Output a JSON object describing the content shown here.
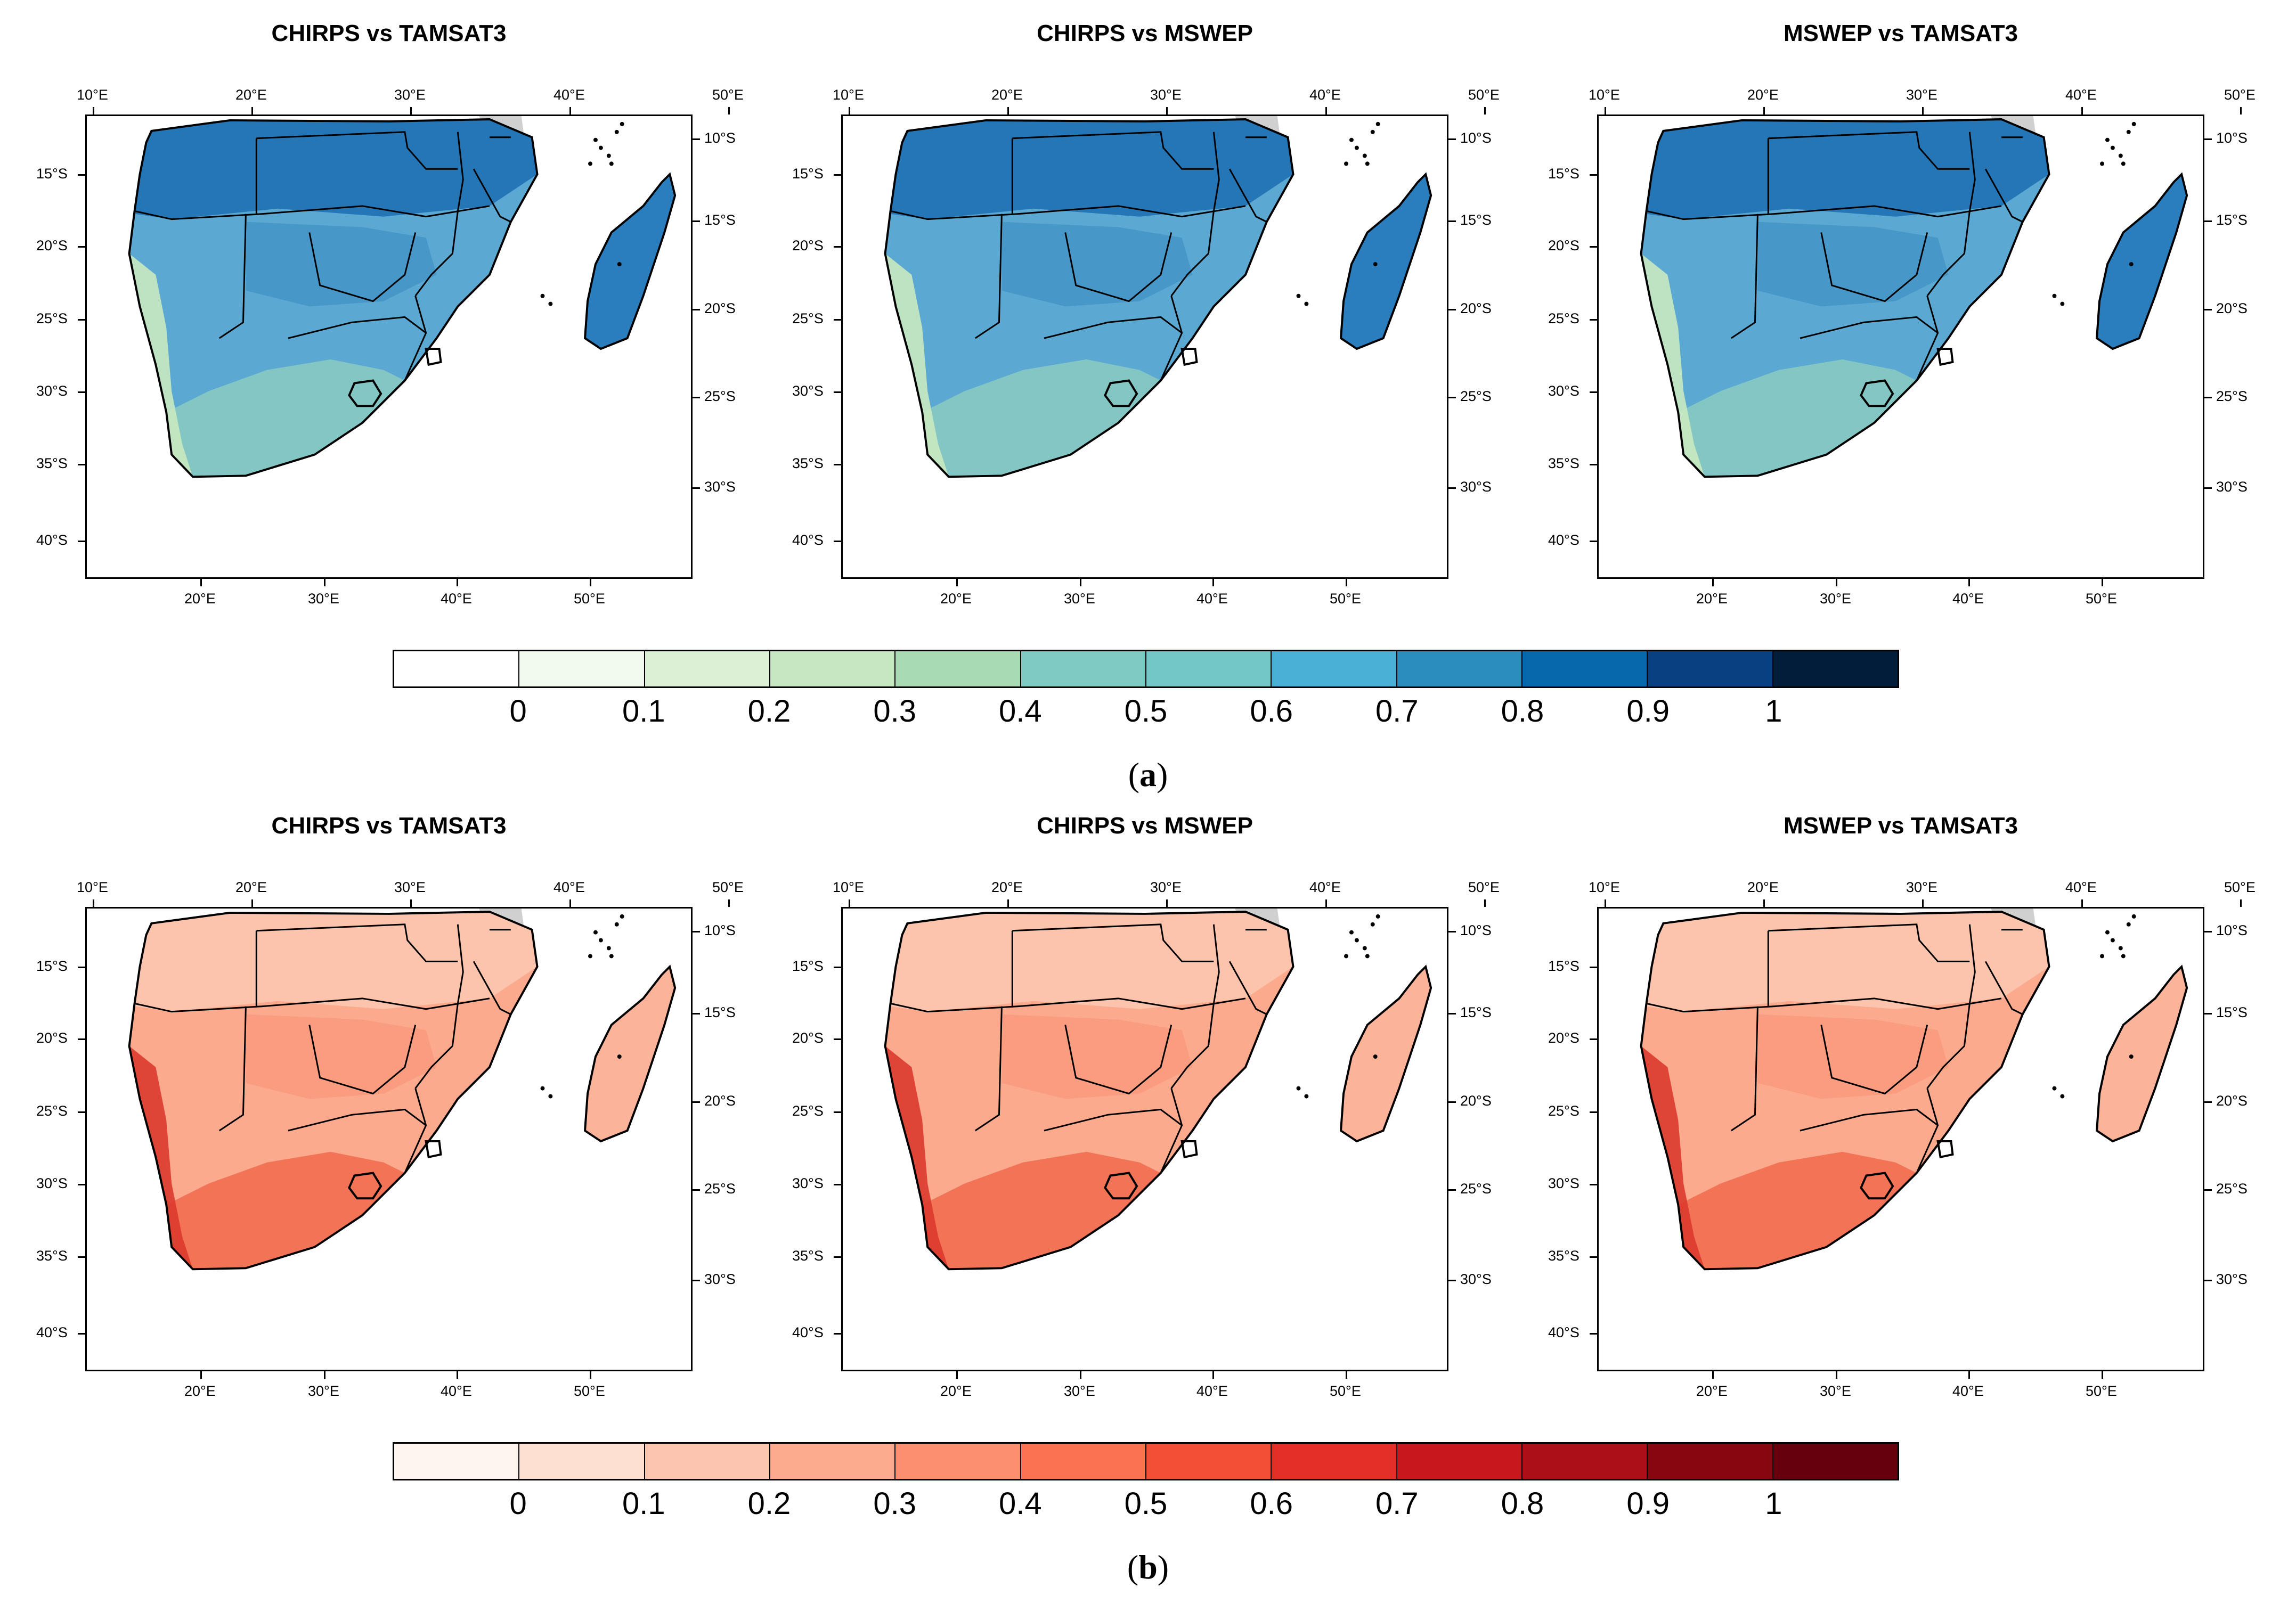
{
  "panels": [
    {
      "label_open": "(",
      "label_letter": "a",
      "label_close": ")",
      "maps": [
        {
          "title": "CHIRPS vs TAMSAT3"
        },
        {
          "title": "CHIRPS vs MSWEP"
        },
        {
          "title": "MSWEP vs TAMSAT3"
        }
      ],
      "palette": [
        "#ffffff",
        "#f2faed",
        "#dcf0d6",
        "#c5e8c0",
        "#a8dbb4",
        "#7fcbc3",
        "#73c8c6",
        "#4ab0d6",
        "#2b8cbe",
        "#0868ac",
        "#084081",
        "#021d3a"
      ],
      "land_colors": {
        "base": "#5ba9d2",
        "north": "#1f70b2",
        "south": "#8ccbc1",
        "coast": "#c9e9c0",
        "interior": "#3b8ec3",
        "mad": "#2a7ebd"
      }
    },
    {
      "label_open": "(",
      "label_letter": "b",
      "label_close": ")",
      "maps": [
        {
          "title": "CHIRPS vs TAMSAT3"
        },
        {
          "title": "CHIRPS vs MSWEP"
        },
        {
          "title": "MSWEP vs TAMSAT3"
        }
      ],
      "palette": [
        "#fff5f0",
        "#fee0d2",
        "#fcc5b0",
        "#fcab8f",
        "#fc8f6f",
        "#fb7252",
        "#f34f36",
        "#e32f27",
        "#c9181d",
        "#ac1016",
        "#87060f",
        "#67000d"
      ],
      "land_colors": {
        "base": "#fcaa8e",
        "north": "#fcc6b0",
        "south": "#f16a4c",
        "coast": "#dc3a2c",
        "interior": "#f99275",
        "mad": "#fbb399"
      }
    }
  ],
  "colorbar": {
    "tick_labels": [
      "0",
      "0.1",
      "0.2",
      "0.3",
      "0.4",
      "0.5",
      "0.6",
      "0.7",
      "0.8",
      "0.9",
      "1"
    ]
  },
  "axes": {
    "top_lon": [
      "10°E",
      "20°E",
      "30°E",
      "40°E",
      "50°E"
    ],
    "bottom_lon": [
      "20°E",
      "30°E",
      "40°E",
      "50°E"
    ],
    "left_lat": [
      "15°S",
      "20°S",
      "25°S",
      "30°S",
      "35°S",
      "40°S"
    ],
    "right_lat": [
      "10°S",
      "15°S",
      "20°S",
      "25°S",
      "30°S"
    ]
  }
}
